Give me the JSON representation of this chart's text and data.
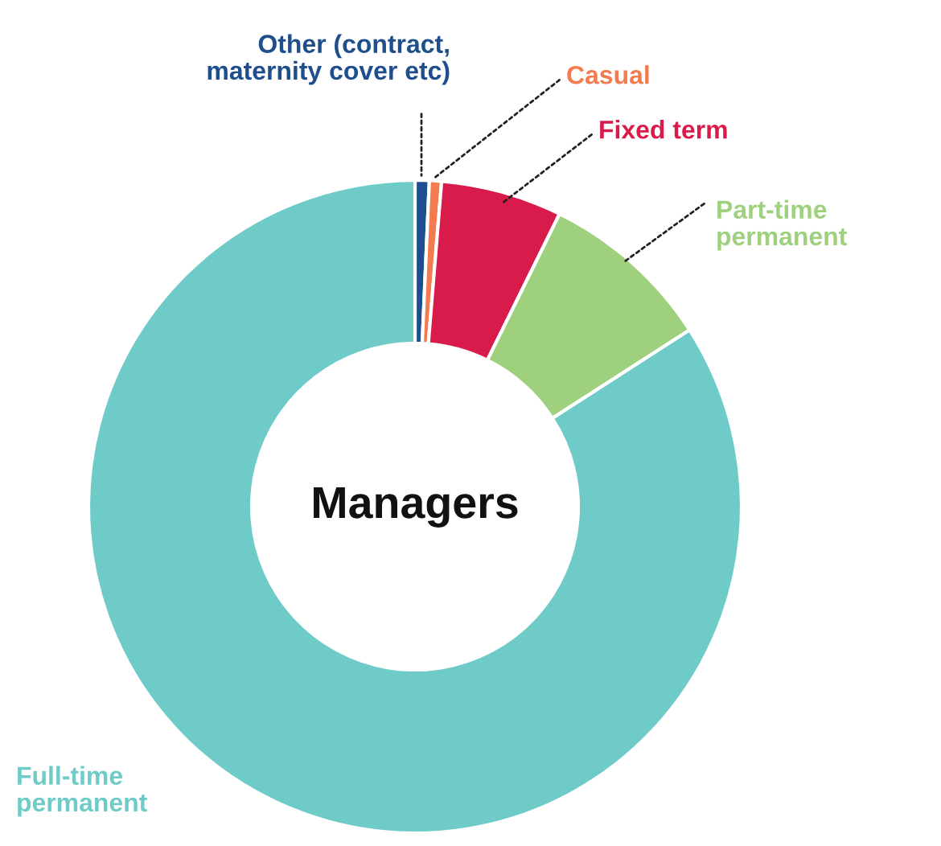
{
  "chart_data": {
    "type": "donut",
    "title": "Managers",
    "categories": [
      "Other (contract,\nmaternity cover etc)",
      "Casual",
      "Fixed term",
      "Part-time\npermanent",
      "Full-time\npermanent"
    ],
    "values": [
      0.7,
      0.6,
      6.0,
      8.6,
      84.1
    ],
    "colors": [
      "#1f4e8c",
      "#f47b4f",
      "#d81b4a",
      "#9ed07e",
      "#6ecbc8"
    ],
    "legend": false
  }
}
